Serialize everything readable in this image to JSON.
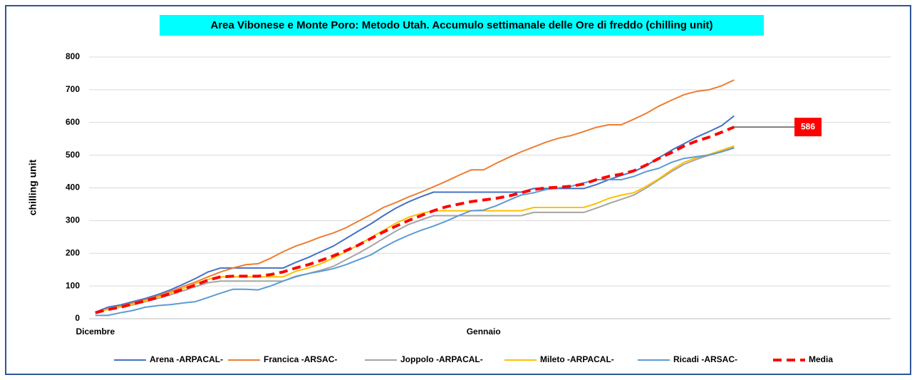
{
  "chart_data": {
    "type": "line",
    "title": "Area Vibonese e Monte Poro: Metodo Utah. Accumulo settimanale delle Ore di freddo (chilling unit)",
    "y_label": "chilling unit",
    "categories": [
      "Dicembre",
      null,
      null,
      null,
      null,
      null,
      null,
      null,
      null,
      null,
      null,
      null,
      null,
      null,
      null,
      null,
      null,
      null,
      null,
      null,
      null,
      null,
      null,
      null,
      null,
      null,
      null,
      null,
      null,
      null,
      null,
      "Gennaio",
      null,
      null,
      null,
      null,
      null,
      null,
      null,
      null,
      null,
      null,
      null,
      null,
      null,
      null,
      null,
      null,
      null,
      null,
      null,
      null,
      null,
      null,
      null,
      null,
      null,
      null,
      null,
      null,
      null,
      null,
      null,
      null
    ],
    "ylim": [
      0,
      800
    ],
    "yticks": [
      0,
      100,
      200,
      300,
      400,
      500,
      600,
      700,
      800
    ],
    "grid": true,
    "legend": "bottom",
    "series": [
      {
        "name": "Arena -ARPACAL-",
        "color": "#4472c4",
        "style": "solid",
        "values": [
          20,
          35,
          42,
          52,
          62,
          74,
          88,
          105,
          123,
          143,
          155,
          155,
          155,
          155,
          155,
          155,
          172,
          187,
          205,
          222,
          245,
          268,
          290,
          315,
          338,
          357,
          373,
          387,
          387,
          387,
          387,
          387,
          387,
          387,
          387,
          398,
          398,
          398,
          398,
          398,
          410,
          425,
          438,
          450,
          468,
          492,
          515,
          535,
          555,
          572,
          590,
          620,
          null,
          null,
          null,
          null,
          null,
          null,
          null,
          null,
          null,
          null,
          null,
          null
        ]
      },
      {
        "name": "Francica -ARSAC-",
        "color": "#ed7d31",
        "style": "solid",
        "values": [
          20,
          30,
          38,
          48,
          58,
          70,
          83,
          98,
          112,
          128,
          143,
          155,
          165,
          168,
          185,
          205,
          222,
          235,
          250,
          262,
          278,
          298,
          318,
          340,
          355,
          372,
          387,
          403,
          420,
          438,
          455,
          455,
          475,
          493,
          510,
          525,
          540,
          552,
          560,
          572,
          585,
          593,
          593,
          610,
          628,
          650,
          668,
          685,
          695,
          700,
          712,
          730,
          null,
          null,
          null,
          null,
          null,
          null,
          null,
          null,
          null,
          null,
          null,
          null
        ]
      },
      {
        "name": "Joppolo  -ARPACAL-",
        "color": "#a5a5a5",
        "style": "solid",
        "values": [
          20,
          28,
          35,
          42,
          52,
          62,
          73,
          85,
          98,
          110,
          115,
          115,
          115,
          115,
          115,
          115,
          130,
          138,
          148,
          160,
          180,
          200,
          222,
          245,
          268,
          288,
          302,
          315,
          315,
          315,
          315,
          315,
          315,
          315,
          315,
          325,
          325,
          325,
          325,
          325,
          338,
          352,
          365,
          378,
          400,
          425,
          450,
          472,
          487,
          500,
          512,
          525,
          null,
          null,
          null,
          null,
          null,
          null,
          null,
          null,
          null,
          null,
          null,
          null
        ]
      },
      {
        "name": "Mileto -ARPACAL-",
        "color": "#ffc000",
        "style": "solid",
        "values": [
          20,
          28,
          36,
          45,
          55,
          65,
          78,
          92,
          107,
          120,
          128,
          128,
          128,
          128,
          128,
          128,
          145,
          155,
          168,
          185,
          205,
          225,
          248,
          270,
          292,
          310,
          322,
          330,
          330,
          330,
          330,
          330,
          330,
          330,
          330,
          340,
          340,
          340,
          340,
          340,
          352,
          368,
          378,
          385,
          405,
          428,
          455,
          478,
          492,
          502,
          515,
          528,
          null,
          null,
          null,
          null,
          null,
          null,
          null,
          null,
          null,
          null,
          null,
          null
        ]
      },
      {
        "name": "Ricadi -ARSAC-",
        "color": "#5b9bd5",
        "style": "solid",
        "values": [
          10,
          10,
          18,
          25,
          35,
          40,
          43,
          48,
          52,
          65,
          78,
          90,
          90,
          88,
          100,
          115,
          128,
          138,
          145,
          153,
          165,
          180,
          195,
          218,
          238,
          255,
          270,
          283,
          298,
          315,
          330,
          332,
          345,
          362,
          378,
          385,
          395,
          400,
          405,
          415,
          425,
          425,
          425,
          435,
          450,
          460,
          478,
          490,
          495,
          500,
          510,
          522,
          null,
          null,
          null,
          null,
          null,
          null,
          null,
          null,
          null,
          null,
          null,
          null
        ]
      },
      {
        "name": "Media",
        "color": "#ff0000",
        "style": "dashed",
        "values": [
          18,
          28,
          35,
          45,
          55,
          65,
          77,
          90,
          103,
          118,
          128,
          130,
          130,
          130,
          135,
          143,
          155,
          165,
          178,
          192,
          208,
          225,
          245,
          265,
          283,
          300,
          315,
          330,
          342,
          350,
          358,
          363,
          368,
          375,
          385,
          395,
          400,
          402,
          405,
          412,
          425,
          435,
          442,
          452,
          470,
          490,
          508,
          528,
          543,
          555,
          570,
          586,
          null,
          null,
          null,
          null,
          null,
          null,
          null,
          null,
          null,
          null,
          null,
          null
        ]
      }
    ]
  }
}
